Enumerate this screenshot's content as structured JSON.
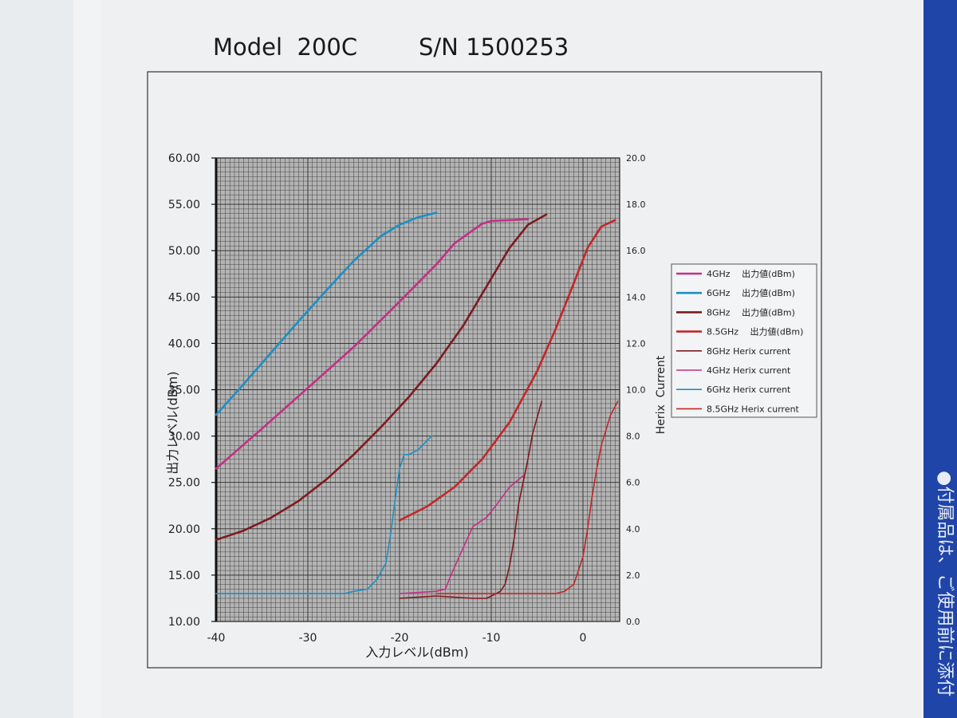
{
  "document": {
    "title_model": "Model  200C",
    "title_serial": "S/N 1500253",
    "side_text": "●付属品は、ご使用前に添付"
  },
  "chart_data": {
    "type": "line",
    "xlabel": "入力レベル(dBm)",
    "ylabel": "出力レベル(dBm)",
    "y2label": "Herix  Current",
    "xlim": [
      -40,
      4
    ],
    "ylim": [
      10,
      60
    ],
    "y2lim": [
      0,
      20
    ],
    "x_ticks": [
      "-40",
      "-30",
      "-20",
      "-10",
      "0"
    ],
    "x_tick_values": [
      -40,
      -30,
      -20,
      -10,
      0
    ],
    "y_ticks": [
      "10.00",
      "15.00",
      "20.00",
      "25.00",
      "30.00",
      "35.00",
      "40.00",
      "45.00",
      "50.00",
      "55.00",
      "60.00"
    ],
    "y_tick_values": [
      10,
      15,
      20,
      25,
      30,
      35,
      40,
      45,
      50,
      55,
      60
    ],
    "y2_ticks": [
      "0.0",
      "2.0",
      "4.0",
      "6.0",
      "8.0",
      "10.0",
      "12.0",
      "14.0",
      "16.0",
      "18.0",
      "20.0"
    ],
    "y2_tick_values": [
      0,
      2,
      4,
      6,
      8,
      10,
      12,
      14,
      16,
      18,
      20
    ],
    "grid": true,
    "legend_position": "right",
    "series": [
      {
        "name": "4GHz　 出力値(dBm)",
        "color": "#c42f86",
        "axis": "left",
        "x": [
          -40,
          -35,
          -30,
          -25,
          -20,
          -16,
          -14,
          -12,
          -11,
          -10,
          -8,
          -6
        ],
        "y": [
          26.5,
          30.8,
          35.2,
          39.6,
          44.5,
          48.5,
          50.8,
          52.2,
          52.9,
          53.2,
          53.3,
          53.4
        ]
      },
      {
        "name": "6GHz　 出力値(dBm)",
        "color": "#1d8fc4",
        "axis": "left",
        "x": [
          -40,
          -37,
          -34,
          -31,
          -28,
          -25,
          -22,
          -20,
          -18,
          -16
        ],
        "y": [
          32.3,
          35.6,
          39.0,
          42.4,
          45.7,
          48.9,
          51.6,
          52.8,
          53.6,
          54.1
        ]
      },
      {
        "name": "8GHz　 出力値(dBm)",
        "color": "#7e1a1f",
        "axis": "left",
        "x": [
          -40,
          -37,
          -34,
          -31,
          -28,
          -25,
          -22,
          -19,
          -16,
          -13,
          -10,
          -8,
          -6,
          -4
        ],
        "y": [
          18.8,
          19.8,
          21.2,
          23.0,
          25.3,
          28.0,
          31.0,
          34.2,
          37.8,
          42.0,
          47.0,
          50.3,
          52.8,
          53.9
        ]
      },
      {
        "name": "8.5GHz　 出力値(dBm)",
        "color": "#c4262a",
        "axis": "left",
        "x": [
          -20,
          -17,
          -14,
          -11,
          -8,
          -5,
          -3,
          -1,
          0.5,
          2,
          3.5
        ],
        "y": [
          20.9,
          22.4,
          24.5,
          27.5,
          31.5,
          37.0,
          41.5,
          46.5,
          50.3,
          52.6,
          53.3
        ]
      },
      {
        "name": "8GHz Herix current",
        "color": "#7e1a1f",
        "axis": "right",
        "x": [
          -20,
          -16,
          -12,
          -10.5,
          -9,
          -8.5,
          -8,
          -7.5,
          -7,
          -6,
          -5.5,
          -4.5
        ],
        "y": [
          1.0,
          1.1,
          1.0,
          1.0,
          1.3,
          1.6,
          2.4,
          3.6,
          5.1,
          7.0,
          8.1,
          9.5
        ]
      },
      {
        "name": "4GHz Herix current",
        "color": "#c42f86",
        "axis": "right",
        "x": [
          -20,
          -16,
          -15,
          -14.5,
          -13.5,
          -12,
          -10.5,
          -9.5,
          -8,
          -6.5
        ],
        "y": [
          1.2,
          1.3,
          1.4,
          1.9,
          2.8,
          4.1,
          4.5,
          5.0,
          5.8,
          6.3
        ]
      },
      {
        "name": "6GHz Herix current",
        "color": "#1d8fc4",
        "axis": "right",
        "x": [
          -40,
          -30,
          -26,
          -25,
          -23.5,
          -22.5,
          -21.5,
          -21,
          -20.5,
          -20,
          -19.5,
          -19,
          -18,
          -16.5
        ],
        "y": [
          1.2,
          1.2,
          1.2,
          1.3,
          1.4,
          1.8,
          2.5,
          3.7,
          5.2,
          6.6,
          7.2,
          7.2,
          7.4,
          8.0
        ]
      },
      {
        "name": "8.5GHz Herix current",
        "color": "#c4262a",
        "axis": "right",
        "x": [
          -16,
          -10,
          -6,
          -3,
          -2,
          -1,
          0,
          0.5,
          1,
          1.5,
          2,
          3,
          3.8
        ],
        "y": [
          1.2,
          1.2,
          1.2,
          1.2,
          1.3,
          1.6,
          2.8,
          4.0,
          5.4,
          6.6,
          7.6,
          8.9,
          9.5
        ]
      }
    ]
  }
}
